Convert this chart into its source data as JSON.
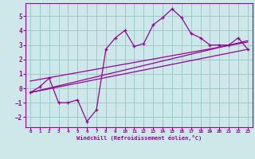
{
  "xlabel": "Windchill (Refroidissement éolien,°C)",
  "bg_color": "#cce8e8",
  "grid_color": "#a0c8c8",
  "line_color": "#990099",
  "xlim": [
    -0.5,
    23.5
  ],
  "ylim": [
    -2.7,
    5.9
  ],
  "xticks": [
    0,
    1,
    2,
    3,
    4,
    5,
    6,
    7,
    8,
    9,
    10,
    11,
    12,
    13,
    14,
    15,
    16,
    17,
    18,
    19,
    20,
    21,
    22,
    23
  ],
  "yticks": [
    -2,
    -1,
    0,
    1,
    2,
    3,
    4,
    5
  ],
  "data_x": [
    0,
    1,
    2,
    3,
    4,
    5,
    6,
    7,
    8,
    9,
    10,
    11,
    12,
    13,
    14,
    15,
    16,
    17,
    18,
    19,
    20,
    21,
    22,
    23
  ],
  "data_y": [
    -0.3,
    0.1,
    0.7,
    -1.0,
    -1.0,
    -0.8,
    -2.3,
    -1.5,
    2.7,
    3.5,
    4.0,
    2.9,
    3.1,
    4.4,
    4.9,
    5.5,
    4.9,
    3.8,
    3.5,
    3.0,
    3.0,
    3.0,
    3.5,
    2.7
  ],
  "line1_x": [
    0,
    23
  ],
  "line1_y": [
    -0.3,
    2.7
  ],
  "line2_x": [
    0,
    23
  ],
  "line2_y": [
    0.5,
    3.2
  ],
  "line3_x": [
    0,
    23
  ],
  "line3_y": [
    -0.3,
    3.3
  ]
}
